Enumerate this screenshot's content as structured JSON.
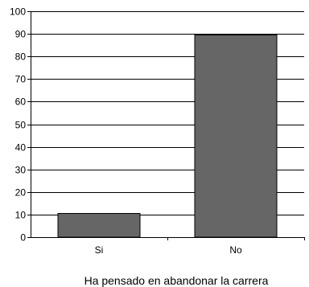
{
  "chart_data": {
    "type": "bar",
    "categories": [
      "Si",
      "No"
    ],
    "values": [
      10.5,
      89.5
    ],
    "xlabel": "Ha pensado en abandonar la carrera",
    "ylabel": "",
    "ylim": [
      0,
      100
    ],
    "yticks": [
      0,
      10,
      20,
      30,
      40,
      50,
      60,
      70,
      80,
      90,
      100
    ],
    "grid": true,
    "legend": "none",
    "bar_color": "#666666"
  }
}
